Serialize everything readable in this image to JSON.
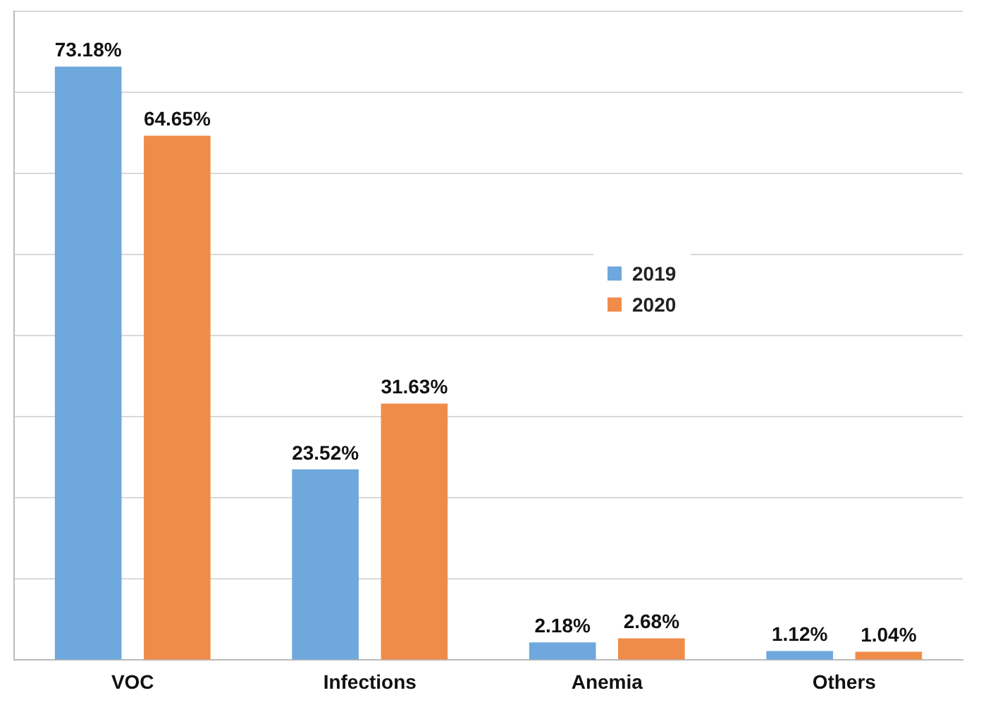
{
  "chart_data": {
    "type": "bar",
    "categories": [
      "VOC",
      "Infections",
      "Anemia",
      "Others"
    ],
    "series": [
      {
        "name": "2019",
        "color": "#6fa8dc",
        "values": [
          73.18,
          23.52,
          2.18,
          1.12
        ],
        "value_labels": [
          "73.18%",
          "23.52%",
          "2.18%",
          "1.12%"
        ]
      },
      {
        "name": "2020",
        "color": "#f08c4a",
        "values": [
          64.65,
          31.63,
          2.68,
          1.04
        ],
        "value_labels": [
          "64.65%",
          "31.63%",
          "2.68%",
          "1.04%"
        ]
      }
    ],
    "ylim": [
      0,
      80
    ],
    "yticks": [
      {
        "value": 0,
        "label": null
      },
      {
        "value": 10,
        "label": null
      },
      {
        "value": 20,
        "label": null
      },
      {
        "value": 30,
        "label": null
      },
      {
        "value": 40,
        "label": null
      },
      {
        "value": 50,
        "label": null
      },
      {
        "value": 60,
        "label": null
      },
      {
        "value": 70,
        "label": null
      },
      {
        "value": 80,
        "label": null
      }
    ],
    "tick_labels": "x",
    "grid": "y",
    "legend": "right"
  }
}
